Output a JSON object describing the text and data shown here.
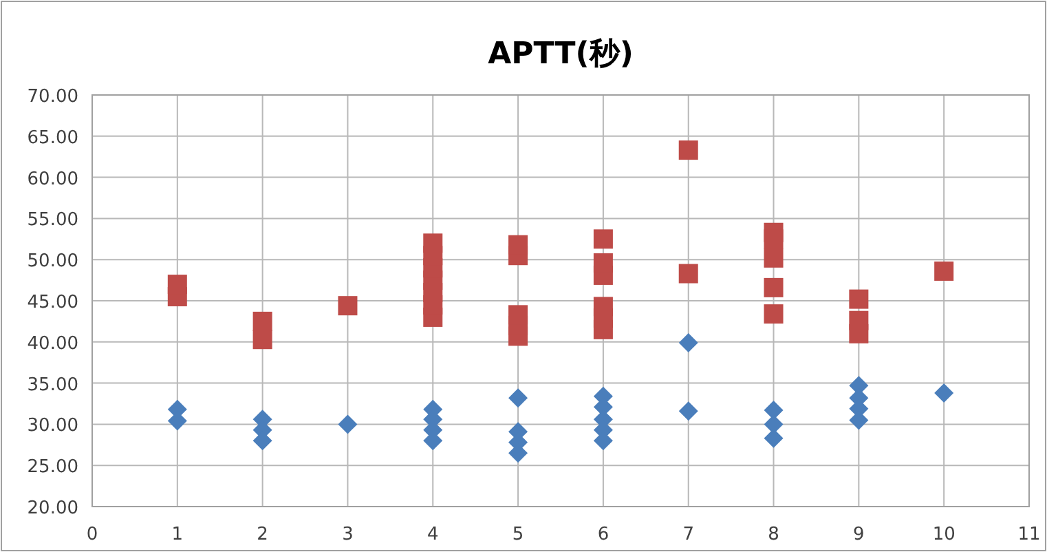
{
  "chart_data": {
    "type": "scatter",
    "title": "APTT(秒)",
    "xlim": [
      0,
      11
    ],
    "xticks": [
      0,
      1,
      2,
      3,
      4,
      5,
      6,
      7,
      8,
      9,
      10,
      11
    ],
    "ylim": [
      20,
      70
    ],
    "yticks": [
      {
        "value": 20,
        "label": "20.00"
      },
      {
        "value": 25,
        "label": "25.00"
      },
      {
        "value": 30,
        "label": "30.00"
      },
      {
        "value": 35,
        "label": "35.00"
      },
      {
        "value": 40,
        "label": "40.00"
      },
      {
        "value": 45,
        "label": "45.00"
      },
      {
        "value": 50,
        "label": "50.00"
      },
      {
        "value": 55,
        "label": "55.00"
      },
      {
        "value": 60,
        "label": "60.00"
      },
      {
        "value": 65,
        "label": "65.00"
      },
      {
        "value": 70,
        "label": "70.00"
      }
    ],
    "grid": true,
    "series": [
      {
        "color": "#4a7ebb",
        "marker": "diamond",
        "x": [
          1,
          1,
          2,
          2,
          2,
          3,
          4,
          4,
          4,
          4,
          5,
          5,
          5,
          5,
          6,
          6,
          6,
          6,
          6,
          7,
          7,
          8,
          8,
          8,
          9,
          9,
          9,
          9,
          10
        ],
        "values": [
          31.8,
          30.4,
          30.6,
          29.3,
          28.0,
          30.0,
          31.8,
          30.6,
          29.3,
          28.0,
          33.2,
          29.1,
          27.8,
          26.5,
          33.4,
          32.1,
          30.6,
          29.3,
          28.0,
          39.9,
          31.6,
          31.7,
          30.0,
          28.3,
          34.7,
          33.2,
          31.9,
          30.5,
          33.8
        ]
      },
      {
        "color": "#be4b48",
        "marker": "square",
        "x": [
          1,
          1,
          2,
          2,
          3,
          4,
          4,
          4,
          4,
          4,
          4,
          4,
          5,
          5,
          5,
          5,
          5,
          6,
          6,
          6,
          6,
          6,
          6,
          7,
          7,
          8,
          8,
          8,
          8,
          8,
          9,
          9,
          9,
          10
        ],
        "values": [
          45.5,
          47.0,
          42.5,
          40.3,
          44.4,
          43,
          44.5,
          46,
          47.5,
          49,
          50.5,
          52,
          50.5,
          51.8,
          40.7,
          42.0,
          43.3,
          52.5,
          48.1,
          49.6,
          41.5,
          42.9,
          44.3,
          63.3,
          48.3,
          53.3,
          52.5,
          50.2,
          46.6,
          43.4,
          45.2,
          41.0,
          42.6,
          48.6
        ]
      }
    ]
  }
}
